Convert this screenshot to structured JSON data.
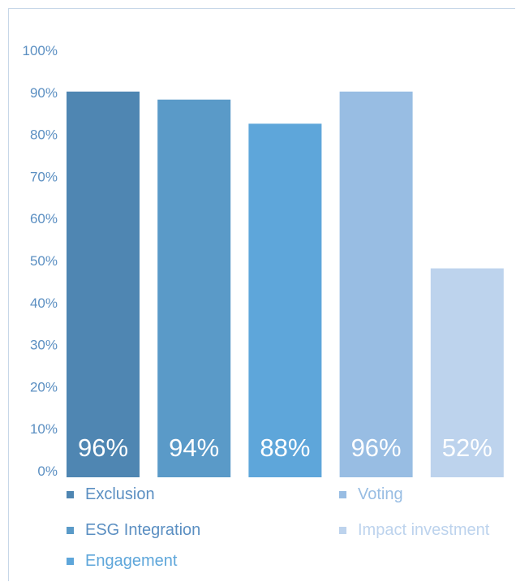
{
  "chart_data": {
    "type": "bar",
    "categories": [
      "Exclusion",
      "ESG Integration",
      "Engagement",
      "Voting",
      "Impact investment"
    ],
    "values": [
      96,
      94,
      88,
      96,
      52
    ],
    "value_labels": [
      "96%",
      "94%",
      "88%",
      "96%",
      "52%"
    ],
    "colors": [
      "#4f86b2",
      "#5a9ac8",
      "#5ea6da",
      "#98bde3",
      "#bdd3ed"
    ],
    "legend_text_colors": [
      "#5b8fc2",
      "#5b8fc2",
      "#5ea6da",
      "#98bde3",
      "#bdd3ed"
    ],
    "y_ticks": [
      "0%",
      "10%",
      "20%",
      "30%",
      "40%",
      "50%",
      "60%",
      "70%",
      "80%",
      "90%",
      "100%"
    ],
    "ylim": [
      0,
      100
    ],
    "title": "",
    "xlabel": "",
    "ylabel": "",
    "grid": false,
    "legend_position": "bottom"
  }
}
